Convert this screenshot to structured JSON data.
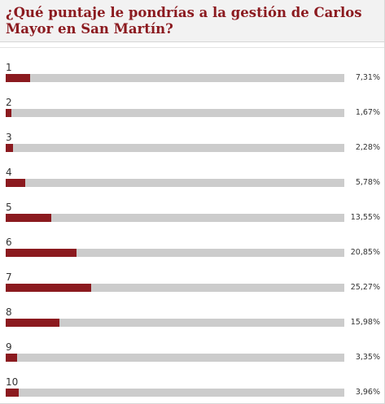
{
  "title": "¿Qué puntaje le pondrías a la gestión de Carlos Mayor en San Martín?",
  "colors": {
    "bar_fill": "#8b1a1f",
    "bar_track": "#cccccc",
    "title": "#8b1a1f",
    "header_bg": "#f2f2f2"
  },
  "chart_data": {
    "type": "bar",
    "orientation": "horizontal",
    "title": "¿Qué puntaje le pondrías a la gestión de Carlos Mayor en San Martín?",
    "categories": [
      "1",
      "2",
      "3",
      "4",
      "5",
      "6",
      "7",
      "8",
      "9",
      "10"
    ],
    "values": [
      7.31,
      1.67,
      2.28,
      5.78,
      13.55,
      20.85,
      25.27,
      15.98,
      3.35,
      3.96
    ],
    "value_labels": [
      "7,31%",
      "1,67%",
      "2,28%",
      "5,78%",
      "13,55%",
      "20,85%",
      "25,27%",
      "15,98%",
      "3,35%",
      "3,96%"
    ],
    "unit": "%",
    "xlim": [
      0,
      100
    ],
    "grid": false,
    "legend": "none"
  }
}
